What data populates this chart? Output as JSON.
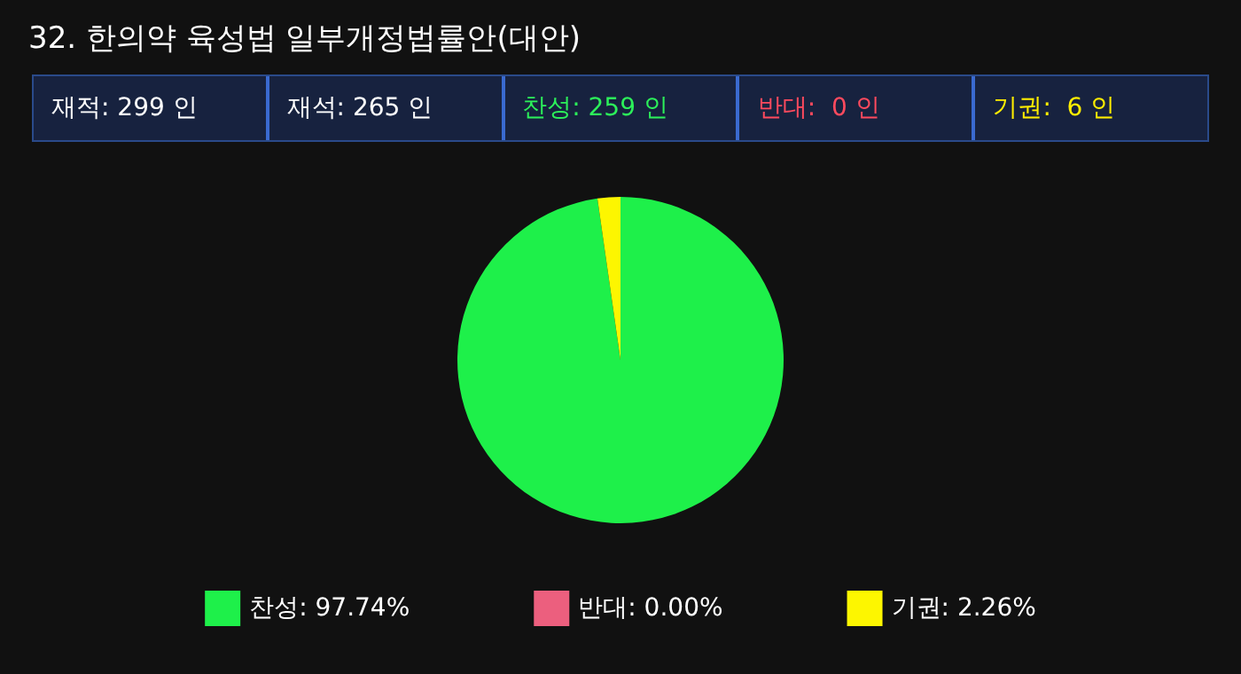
{
  "chart_data": {
    "type": "pie",
    "title": "32. 한의약 육성법 일부개정법률안(대안)",
    "annotations": [
      "재적: 299 인",
      "재석: 265 인",
      "찬성: 259 인",
      "반대:  0 인",
      "기권:  6 인"
    ],
    "categories": [
      "찬성: 97.74%",
      "반대: 0.00%",
      "기권: 2.26%"
    ],
    "values": [
      97.74,
      0.0,
      2.26
    ],
    "colors": [
      "#1ef04a",
      "#ec5f7e",
      "#fdf600"
    ],
    "legend": "bottom"
  }
}
